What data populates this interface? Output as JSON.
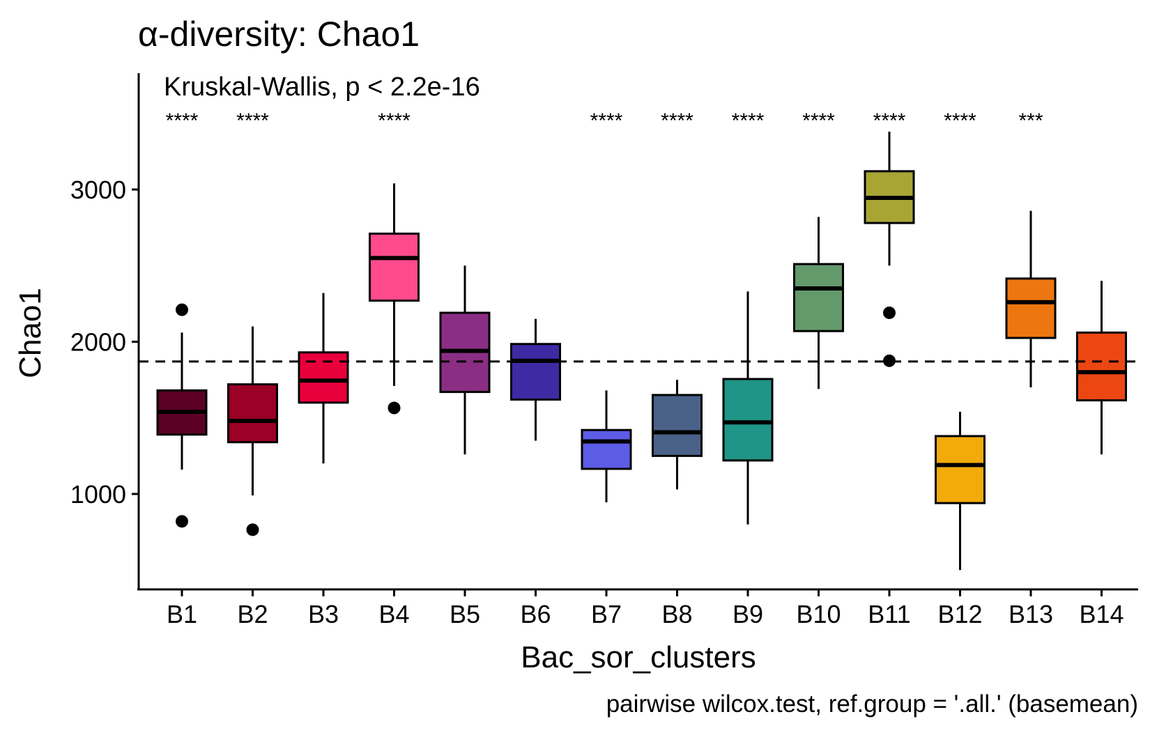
{
  "chart_data": {
    "type": "box",
    "title": "α-diversity: Chao1",
    "subtitle": "Kruskal-Wallis, p < 2.2e-16",
    "caption": "pairwise wilcox.test, ref.group = '.all.' (basemean)",
    "xlabel": "Bac_sor_clusters",
    "ylabel": "Chao1",
    "ylim": [
      370,
      3700
    ],
    "y_ticks": [
      1000,
      2000,
      3000
    ],
    "reference_line": 1870,
    "categories": [
      "B1",
      "B2",
      "B3",
      "B4",
      "B5",
      "B6",
      "B7",
      "B8",
      "B9",
      "B10",
      "B11",
      "B12",
      "B13",
      "B14"
    ],
    "boxes": [
      {
        "group": "B1",
        "whisker_low": 1160,
        "q1": 1390,
        "median": 1540,
        "q3": 1680,
        "whisker_high": 2060,
        "outliers": [
          2210,
          820
        ],
        "color": "#5c0026",
        "signif": "****"
      },
      {
        "group": "B2",
        "whisker_low": 990,
        "q1": 1340,
        "median": 1480,
        "q3": 1720,
        "whisker_high": 2100,
        "outliers": [
          765
        ],
        "color": "#9b0026",
        "signif": "****"
      },
      {
        "group": "B3",
        "whisker_low": 1200,
        "q1": 1600,
        "median": 1745,
        "q3": 1930,
        "whisker_high": 2320,
        "outliers": [],
        "color": "#e8003d",
        "signif": ""
      },
      {
        "group": "B4",
        "whisker_low": 1710,
        "q1": 2270,
        "median": 2550,
        "q3": 2710,
        "whisker_high": 3040,
        "outliers": [
          1565
        ],
        "color": "#ff4b8c",
        "signif": "****"
      },
      {
        "group": "B5",
        "whisker_low": 1260,
        "q1": 1670,
        "median": 1940,
        "q3": 2190,
        "whisker_high": 2500,
        "outliers": [],
        "color": "#8a2e84",
        "signif": ""
      },
      {
        "group": "B6",
        "whisker_low": 1350,
        "q1": 1620,
        "median": 1875,
        "q3": 1985,
        "whisker_high": 2150,
        "outliers": [],
        "color": "#3e2aa3",
        "signif": ""
      },
      {
        "group": "B7",
        "whisker_low": 945,
        "q1": 1165,
        "median": 1345,
        "q3": 1420,
        "whisker_high": 1680,
        "outliers": [],
        "color": "#5c5ce6",
        "signif": "****"
      },
      {
        "group": "B8",
        "whisker_low": 1030,
        "q1": 1250,
        "median": 1405,
        "q3": 1650,
        "whisker_high": 1750,
        "outliers": [],
        "color": "#4a6288",
        "signif": "****"
      },
      {
        "group": "B9",
        "whisker_low": 800,
        "q1": 1220,
        "median": 1470,
        "q3": 1755,
        "whisker_high": 2330,
        "outliers": [],
        "color": "#1f9588",
        "signif": "****"
      },
      {
        "group": "B10",
        "whisker_low": 1690,
        "q1": 2070,
        "median": 2350,
        "q3": 2510,
        "whisker_high": 2820,
        "outliers": [],
        "color": "#64996c",
        "signif": "****"
      },
      {
        "group": "B11",
        "whisker_low": 2500,
        "q1": 2780,
        "median": 2945,
        "q3": 3120,
        "whisker_high": 3380,
        "outliers": [
          2190,
          1875
        ],
        "color": "#a8a535",
        "signif": "****"
      },
      {
        "group": "B12",
        "whisker_low": 500,
        "q1": 940,
        "median": 1190,
        "q3": 1380,
        "whisker_high": 1540,
        "outliers": [],
        "color": "#f2ab0a",
        "signif": "****"
      },
      {
        "group": "B13",
        "whisker_low": 1700,
        "q1": 2025,
        "median": 2260,
        "q3": 2415,
        "whisker_high": 2860,
        "outliers": [],
        "color": "#ed760f",
        "signif": "***"
      },
      {
        "group": "B14",
        "whisker_low": 1260,
        "q1": 1615,
        "median": 1800,
        "q3": 2060,
        "whisker_high": 2400,
        "outliers": [],
        "color": "#ec4712",
        "signif": ""
      }
    ],
    "grid": false,
    "legend": "none"
  }
}
